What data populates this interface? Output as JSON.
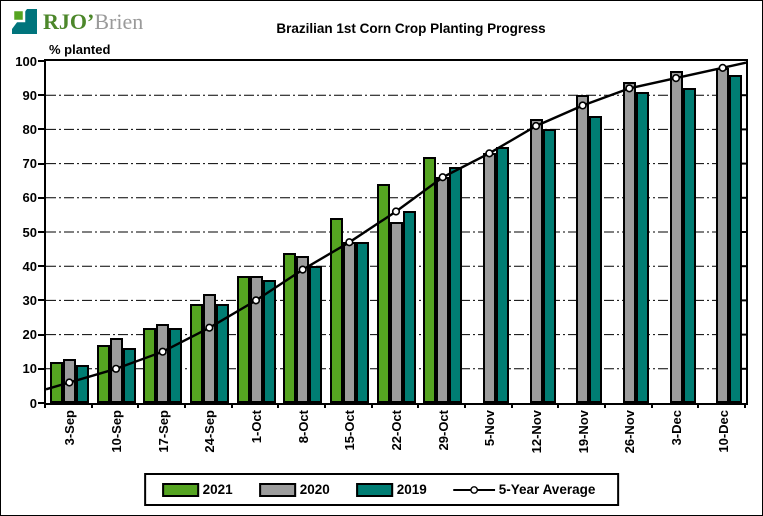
{
  "logo": {
    "primary": "RJO’",
    "secondary": "Brien",
    "primary_color": "#4c872a",
    "secondary_color": "#9a9a9a",
    "icon_green": "#55a421",
    "icon_teal": "#00747c"
  },
  "chart_data": {
    "type": "bar",
    "title": "Brazilian 1st Corn Crop Planting Progress",
    "ylabel": "% planted",
    "xlabel": "",
    "ylim": [
      0,
      100
    ],
    "ytick_step": 10,
    "grid": "horizontal-dash-dot",
    "legend_position": "bottom",
    "categories": [
      "3-Sep",
      "10-Sep",
      "17-Sep",
      "24-Sep",
      "1-Oct",
      "8-Oct",
      "15-Oct",
      "22-Oct",
      "29-Oct",
      "5-Nov",
      "12-Nov",
      "19-Nov",
      "26-Nov",
      "3-Dec",
      "10-Dec"
    ],
    "series": [
      {
        "name": "2021",
        "type": "bar",
        "color": "#55a421",
        "values": [
          12,
          17,
          22,
          29,
          37,
          44,
          54,
          64,
          72,
          null,
          null,
          null,
          null,
          null,
          null
        ]
      },
      {
        "name": "2020",
        "type": "bar",
        "color": "#9c9c9c",
        "values": [
          13,
          19,
          23,
          32,
          37,
          43,
          47,
          53,
          66,
          73,
          83,
          90,
          94,
          97,
          98
        ]
      },
      {
        "name": "2019",
        "type": "bar",
        "color": "#007d73",
        "values": [
          11,
          16,
          22,
          29,
          36,
          40,
          47,
          56,
          69,
          75,
          80,
          84,
          91,
          92,
          96
        ]
      },
      {
        "name": "5-Year Average",
        "type": "line",
        "color": "#000000",
        "marker": "open-circle",
        "values": [
          6,
          10,
          15,
          22,
          30,
          39,
          47,
          56,
          66,
          73,
          81,
          87,
          92,
          95,
          98
        ]
      }
    ]
  }
}
